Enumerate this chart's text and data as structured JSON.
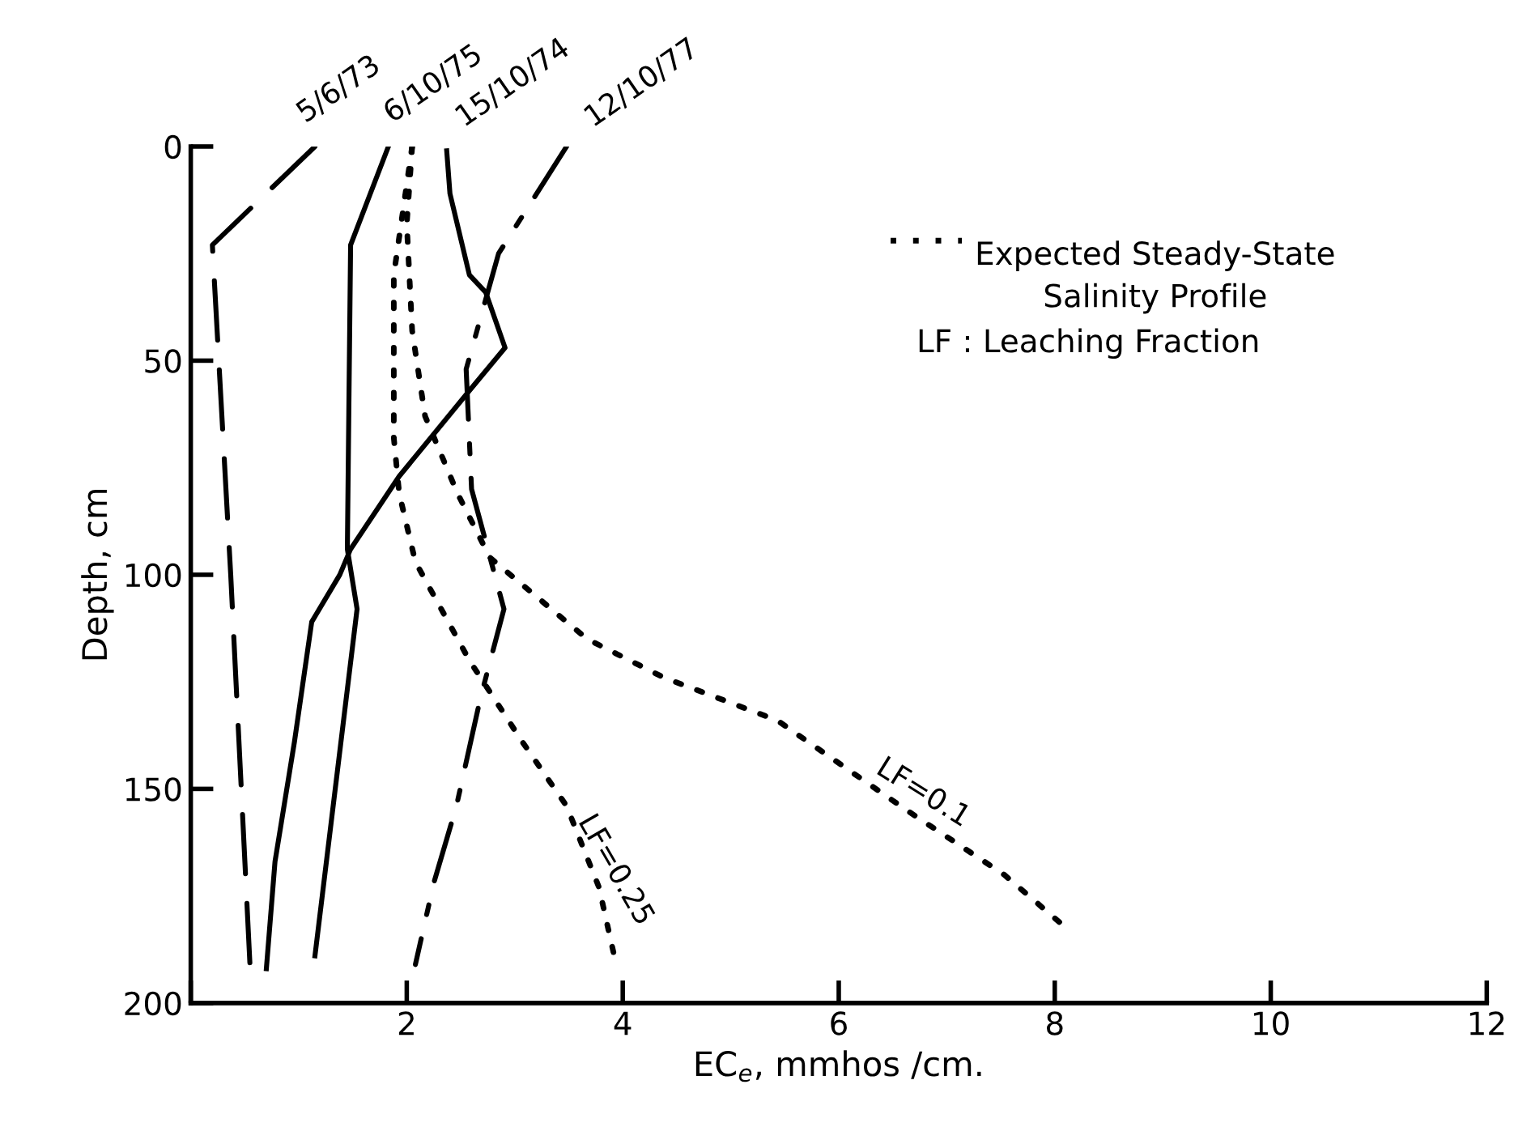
{
  "chart_data": {
    "type": "line",
    "xlabel": "EC$_{e}$, mmhos /cm.",
    "ylabel": "Depth, cm",
    "xlim": [
      0,
      12
    ],
    "xticks": [
      {
        "value": 0,
        "label": null
      },
      2,
      4,
      6,
      8,
      10,
      12
    ],
    "ylim": [
      200,
      0
    ],
    "yticks": [
      0,
      50,
      100,
      150,
      200
    ],
    "grid": false,
    "legend": false,
    "marker": "none",
    "series": [
      {
        "name": "5/6/73",
        "color": "#000000",
        "line_style": "dashed",
        "x": [
          1.15,
          0.2,
          0.37,
          0.55
        ],
        "values": [
          0,
          23,
          100,
          192
        ]
      },
      {
        "name": "6/10/75",
        "color": "#000000",
        "line_style": "solid",
        "x": [
          1.83,
          1.48,
          1.45,
          1.54,
          1.15
        ],
        "values": [
          0,
          23,
          94,
          108,
          189
        ]
      },
      {
        "name": "15/10/74",
        "color": "#000000",
        "line_style": "solid",
        "x": [
          2.37,
          2.4,
          2.58,
          2.73,
          2.91,
          2.58,
          1.93,
          1.48,
          1.38,
          1.12,
          0.96,
          0.78,
          0.7
        ],
        "values": [
          1,
          11,
          30,
          34,
          47,
          57,
          77,
          94,
          100,
          111,
          139,
          167,
          192
        ]
      },
      {
        "name": "12/10/77",
        "color": "#000000",
        "line_style": "dashdot",
        "x": [
          3.48,
          2.85,
          2.55,
          2.6,
          2.9,
          2.68,
          2.46,
          2.25,
          2.08
        ],
        "values": [
          0,
          25,
          52,
          80,
          108,
          129,
          154,
          172,
          191
        ]
      },
      {
        "name": "LF=0.1",
        "color": "#000000",
        "line_style": "dotted",
        "x": [
          2.05,
          2.0,
          2.05,
          2.17,
          2.47,
          2.77,
          3.67,
          4.38,
          5.43,
          6.63,
          7.53,
          8.13
        ],
        "values": [
          0,
          18,
          43,
          63,
          81,
          96,
          115,
          124,
          134,
          155,
          170,
          183
        ]
      },
      {
        "name": "LF=0.25",
        "color": "#000000",
        "line_style": "dotted",
        "x": [
          2.05,
          1.88,
          1.88,
          1.93,
          2.08,
          2.58,
          3.07,
          3.48,
          3.78,
          3.93
        ],
        "values": [
          0,
          30,
          68,
          81,
          97,
          120,
          139,
          154,
          173,
          190
        ]
      }
    ],
    "annotations": [
      "Expected Steady-State\nSalinity Profile",
      "LF : Leaching Fraction"
    ]
  }
}
